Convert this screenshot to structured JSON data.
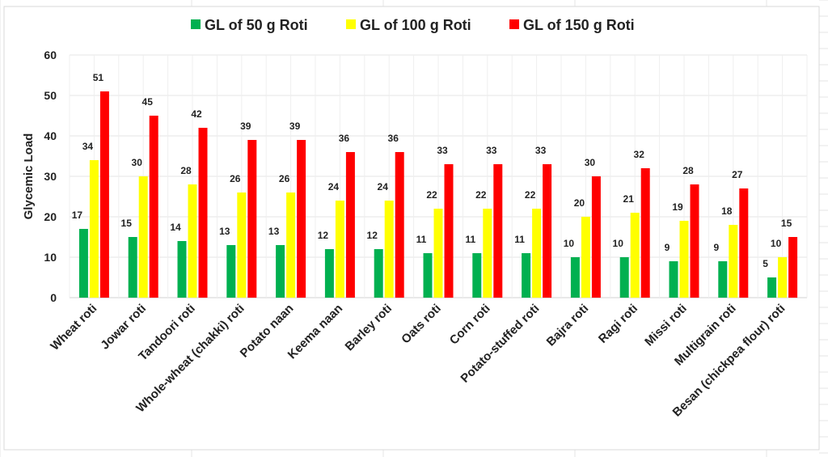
{
  "chart_data": {
    "type": "bar",
    "title": "",
    "xlabel": "",
    "ylabel": "Glycemic Load",
    "ylim": [
      0,
      60
    ],
    "yticks": [
      0,
      10,
      20,
      30,
      40,
      50,
      60
    ],
    "grid": true,
    "legend_position": "top",
    "categories": [
      "Wheat roti",
      "Jowar roti",
      "Tandoori roti",
      "Whole-wheat (chakki) roti",
      "Potato naan",
      "Keema naan",
      "Barley roti",
      "Oats roti",
      "Corn roti",
      "Potato-stuffed roti",
      "Bajra roti",
      "Ragi roti",
      "Missi roti",
      "Multigrain roti",
      "Besan (chickpea flour) roti"
    ],
    "series": [
      {
        "name": "GL of 50 g Roti",
        "color": "#00b050",
        "values": [
          17,
          15,
          14,
          13,
          13,
          12,
          12,
          11,
          11,
          11,
          10,
          10,
          9,
          9,
          5
        ]
      },
      {
        "name": "GL of 100 g Roti",
        "color": "#ffff00",
        "values": [
          34,
          30,
          28,
          26,
          26,
          24,
          24,
          22,
          22,
          22,
          20,
          21,
          19,
          18,
          10
        ]
      },
      {
        "name": "GL of 150 g Roti",
        "color": "#ff0000",
        "values": [
          51,
          45,
          42,
          39,
          39,
          36,
          36,
          33,
          33,
          33,
          30,
          32,
          28,
          27,
          15
        ]
      }
    ]
  }
}
